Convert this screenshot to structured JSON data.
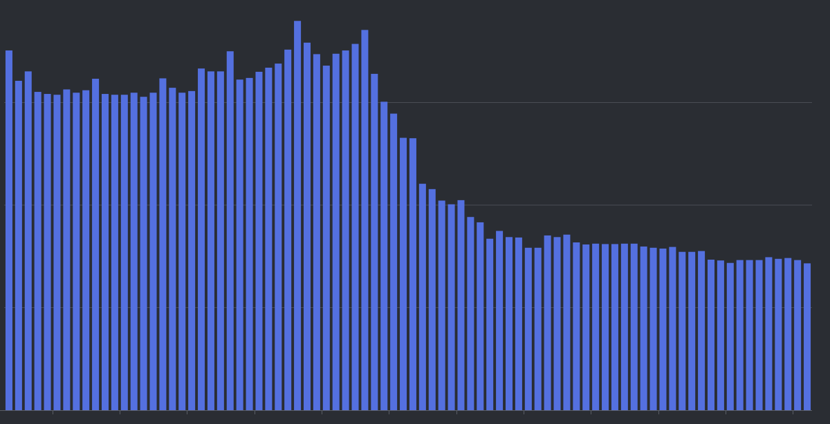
{
  "chart_data": {
    "type": "bar",
    "title": "",
    "xlabel": "",
    "ylabel": "",
    "ylim": [
      0,
      100
    ],
    "grid": true,
    "gridlines_y": [
      25,
      50,
      75
    ],
    "colors": {
      "background": "#2a2d33",
      "bar": "#5470e0",
      "grid": "#4a4d54",
      "axis": "#5a5e66"
    },
    "series": [
      {
        "values": [
          87.7,
          80.3,
          82.6,
          77.6,
          77.1,
          76.9,
          78.2,
          77.4,
          78.0,
          80.8,
          77.1,
          76.9,
          76.9,
          77.4,
          76.4,
          77.4,
          80.9,
          78.6,
          77.4,
          77.8,
          83.3,
          82.6,
          82.6,
          87.5,
          80.6,
          81.0,
          82.5,
          83.5,
          84.5,
          87.9,
          94.9,
          89.6,
          86.8,
          84.0,
          86.9,
          87.7,
          89.3,
          92.7,
          82.0,
          75.2,
          72.3,
          66.4,
          66.3,
          55.2,
          53.9,
          51.1,
          50.2,
          51.2,
          47.1,
          45.8,
          41.8,
          43.7,
          42.2,
          42.1,
          39.6,
          39.6,
          42.6,
          42.2,
          42.8,
          40.9,
          40.4,
          40.6,
          40.5,
          40.5,
          40.6,
          40.6,
          39.9,
          39.6,
          39.4,
          39.8,
          38.6,
          38.6,
          38.8,
          36.7,
          36.5,
          35.9,
          36.6,
          36.6,
          36.6,
          37.3,
          36.9,
          37.1,
          36.6,
          35.8
        ]
      }
    ]
  }
}
